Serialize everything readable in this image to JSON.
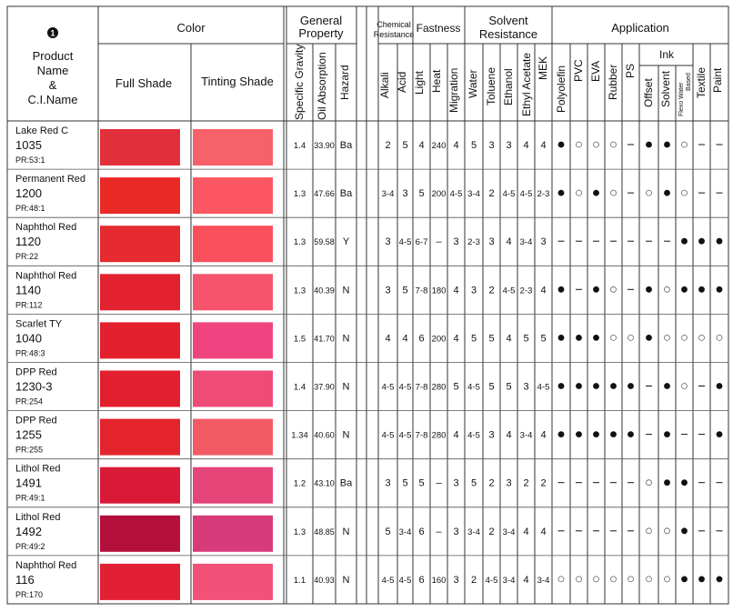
{
  "header": {
    "badge": "1",
    "product_col": [
      "Product",
      "Name",
      "&",
      "C.I.Name"
    ],
    "color_group": "Color",
    "full_shade": "Full Shade",
    "tinting_shade": "Tinting Shade",
    "general_property": [
      "General",
      "Property"
    ],
    "specific_gravity": "Specific Gravity",
    "oil_absorption": "Oil Absorption",
    "hazard": "Hazard",
    "chemical_resistance": [
      "Chemical",
      "Resistance"
    ],
    "alkali": "Alkali",
    "acid": "Acid",
    "fastness": "Fastness",
    "light": "Light",
    "heat": "Heat",
    "migration": "Migration",
    "solvent_resistance": [
      "Solvent",
      "Resistance"
    ],
    "water": "Water",
    "toluene": "Toluene",
    "ethanol": "Ethanol",
    "ethyl_acetate": "Ethyl Acetate",
    "mek": "MEK",
    "application": "Application",
    "polyolefin": "Polyolefin",
    "pvc": "PVC",
    "eva": "EVA",
    "rubber": "Rubber",
    "ps": "PS",
    "ink": "Ink",
    "offset": "Offset",
    "solvent": "Solvent",
    "flexo": [
      "Flexo Water",
      "Based"
    ],
    "textile": "Textile",
    "paint": "Paint"
  },
  "legend": {
    "filled": "●",
    "open": "○",
    "none": "–"
  },
  "rows": [
    {
      "name": "Lake Red C",
      "code": "1035",
      "ci": "PR:53:1",
      "full": "#e2303a",
      "tint": "#f7616a",
      "sg": "1.4",
      "oil": "33.90",
      "hazard": "Ba",
      "alkali": "2",
      "acid": "5",
      "light": "4",
      "heat": "240",
      "migration": "4",
      "water": "5",
      "toluene": "3",
      "ethanol": "3",
      "ethyl_acetate": "4",
      "mek": "4",
      "apps": [
        "f",
        "o",
        "o",
        "o",
        "-",
        "f",
        "f",
        "o",
        "-",
        "-"
      ]
    },
    {
      "name": "Permanent Red",
      "code": "1200",
      "ci": "PR:48:1",
      "full": "#ea2a27",
      "tint": "#fb5662",
      "sg": "1.3",
      "oil": "47.66",
      "hazard": "Ba",
      "alkali": "3-4",
      "acid": "3",
      "light": "5",
      "heat": "200",
      "migration": "4-5",
      "water": "3-4",
      "toluene": "2",
      "ethanol": "4-5",
      "ethyl_acetate": "4-5",
      "mek": "2-3",
      "apps": [
        "f",
        "o",
        "f",
        "o",
        "-",
        "o",
        "f",
        "o",
        "-",
        "-"
      ]
    },
    {
      "name": "Naphthol Red",
      "code": "1120",
      "ci": "PR:22",
      "full": "#e52a30",
      "tint": "#f9505b",
      "sg": "1.3",
      "oil": "59.58",
      "hazard": "Y",
      "alkali": "3",
      "acid": "4-5",
      "light": "6-7",
      "heat": "–",
      "migration": "3",
      "water": "2-3",
      "toluene": "3",
      "ethanol": "4",
      "ethyl_acetate": "3-4",
      "mek": "3",
      "apps": [
        "-",
        "-",
        "-",
        "-",
        "-",
        "-",
        "-",
        "f",
        "f",
        "f"
      ]
    },
    {
      "name": "Naphthol Red",
      "code": "1140",
      "ci": "PR:112",
      "full": "#e3222f",
      "tint": "#f6536c",
      "sg": "1.3",
      "oil": "40.39",
      "hazard": "N",
      "alkali": "3",
      "acid": "5",
      "light": "7-8",
      "heat": "180",
      "migration": "4",
      "water": "3",
      "toluene": "2",
      "ethanol": "4-5",
      "ethyl_acetate": "2-3",
      "mek": "4",
      "apps": [
        "f",
        "-",
        "f",
        "o",
        "-",
        "f",
        "o",
        "f",
        "f",
        "f"
      ]
    },
    {
      "name": "Scarlet TY",
      "code": "1040",
      "ci": "PR:48:3",
      "full": "#e2202e",
      "tint": "#ef4480",
      "sg": "1.5",
      "oil": "41.70",
      "hazard": "N",
      "alkali": "4",
      "acid": "4",
      "light": "6",
      "heat": "200",
      "migration": "4",
      "water": "5",
      "toluene": "5",
      "ethanol": "4",
      "ethyl_acetate": "5",
      "mek": "5",
      "apps": [
        "f",
        "f",
        "f",
        "o",
        "o",
        "f",
        "o",
        "o",
        "o",
        "o"
      ]
    },
    {
      "name": "DPP Red",
      "code": "1230-3",
      "ci": "PR:254",
      "full": "#e21f2e",
      "tint": "#ee4b77",
      "sg": "1.4",
      "oil": "37.90",
      "hazard": "N",
      "alkali": "4-5",
      "acid": "4-5",
      "light": "7-8",
      "heat": "280",
      "migration": "5",
      "water": "4-5",
      "toluene": "5",
      "ethanol": "5",
      "ethyl_acetate": "3",
      "mek": "4-5",
      "apps": [
        "f",
        "f",
        "f",
        "f",
        "f",
        "-",
        "f",
        "o",
        "-",
        "f"
      ]
    },
    {
      "name": "DPP Red",
      "code": "1255",
      "ci": "PR:255",
      "full": "#e4242c",
      "tint": "#f25b64",
      "sg": "1.34",
      "oil": "40.60",
      "hazard": "N",
      "alkali": "4-5",
      "acid": "4-5",
      "light": "7-8",
      "heat": "280",
      "migration": "4",
      "water": "4-5",
      "toluene": "3",
      "ethanol": "4",
      "ethyl_acetate": "3-4",
      "mek": "4",
      "apps": [
        "f",
        "f",
        "f",
        "f",
        "f",
        "-",
        "f",
        "-",
        "-",
        "f"
      ]
    },
    {
      "name": "Lithol Red",
      "code": "1491",
      "ci": "PR:49:1",
      "full": "#d81a38",
      "tint": "#e54579",
      "sg": "1.2",
      "oil": "43.10",
      "hazard": "Ba",
      "alkali": "3",
      "acid": "5",
      "light": "5",
      "heat": "–",
      "migration": "3",
      "water": "5",
      "toluene": "2",
      "ethanol": "3",
      "ethyl_acetate": "2",
      "mek": "2",
      "apps": [
        "-",
        "-",
        "-",
        "-",
        "-",
        "o",
        "f",
        "f",
        "-",
        "-"
      ]
    },
    {
      "name": "Lithol Red",
      "code": "1492",
      "ci": "PR:49:2",
      "full": "#b3103b",
      "tint": "#d93b7a",
      "sg": "1.3",
      "oil": "48.85",
      "hazard": "N",
      "alkali": "5",
      "acid": "3-4",
      "light": "6",
      "heat": "–",
      "migration": "3",
      "water": "3-4",
      "toluene": "2",
      "ethanol": "3-4",
      "ethyl_acetate": "4",
      "mek": "4",
      "apps": [
        "-",
        "-",
        "-",
        "-",
        "-",
        "o",
        "o",
        "f",
        "-",
        "-"
      ]
    },
    {
      "name": "Naphthol Red",
      "code": "116",
      "ci": "PR:170",
      "full": "#e11f35",
      "tint": "#f25277",
      "sg": "1.1",
      "oil": "40.93",
      "hazard": "N",
      "alkali": "4-5",
      "acid": "4-5",
      "light": "6",
      "heat": "160",
      "migration": "3",
      "water": "2",
      "toluene": "4-5",
      "ethanol": "3-4",
      "ethyl_acetate": "4",
      "mek": "3-4",
      "apps": [
        "o",
        "o",
        "o",
        "o",
        "o",
        "o",
        "o",
        "f",
        "f",
        "f"
      ]
    }
  ]
}
